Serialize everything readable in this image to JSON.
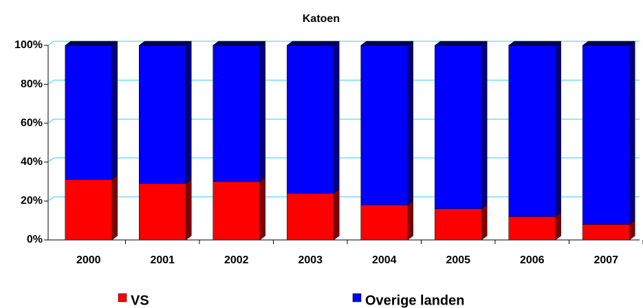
{
  "chart_data": {
    "type": "stacked-bar-3d",
    "title": "Katoen",
    "categories": [
      "2000",
      "2001",
      "2002",
      "2003",
      "2004",
      "2005",
      "2006",
      "2007"
    ],
    "series": [
      {
        "name": "VS",
        "color": "#ff0000",
        "values": [
          31,
          29,
          30,
          24,
          18,
          16,
          12,
          8
        ]
      },
      {
        "name": "Overige landen",
        "color": "#0000ff",
        "values": [
          69,
          71,
          70,
          76,
          82,
          84,
          88,
          92
        ]
      }
    ],
    "ylim": [
      0,
      100
    ],
    "yticks": [
      {
        "value": 0,
        "label": "0%"
      },
      {
        "value": 20,
        "label": "20%"
      },
      {
        "value": 40,
        "label": "40%"
      },
      {
        "value": 60,
        "label": "60%"
      },
      {
        "value": 80,
        "label": "80%"
      },
      {
        "value": 100,
        "label": "100%"
      }
    ],
    "grid": true
  }
}
